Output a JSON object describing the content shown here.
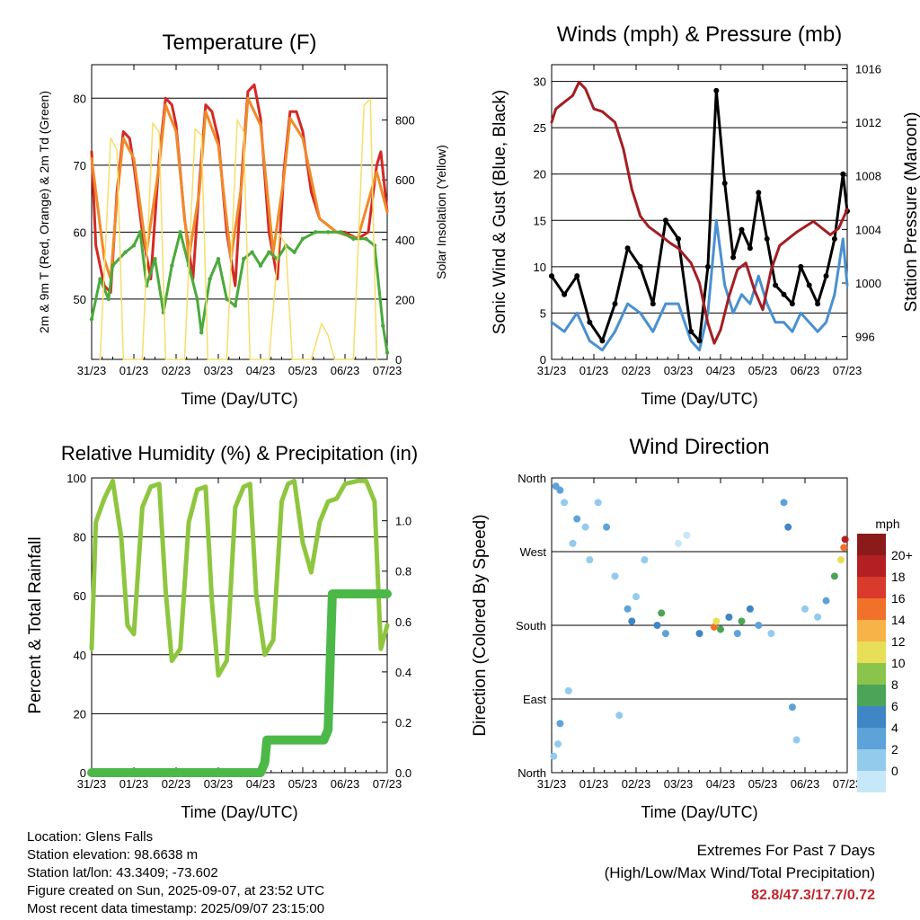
{
  "time_ticks": [
    "31/23",
    "01/23",
    "02/23",
    "03/23",
    "04/23",
    "05/23",
    "06/23",
    "07/23"
  ],
  "charts": {
    "temperature": {
      "title": "Temperature (F)",
      "xlabel": "Time (Day/UTC)",
      "ylabel_left": "2m & 9m T (Red, Orange) & 2m Td (Green)",
      "ylabel_right": "Solar Insolation (Yellow)",
      "left_ticks": [
        "50",
        "60",
        "70",
        "80"
      ],
      "right_ticks": [
        "0",
        "200",
        "400",
        "600",
        "800"
      ]
    },
    "winds": {
      "title": "Winds (mph) & Pressure (mb)",
      "xlabel": "Time (Day/UTC)",
      "ylabel_left": "Sonic Wind & Gust (Blue, Black)",
      "ylabel_right": "Station Pressure (Maroon)",
      "left_ticks": [
        "0",
        "5",
        "10",
        "15",
        "20",
        "25",
        "30"
      ],
      "right_ticks": [
        "996",
        "1000",
        "1004",
        "1008",
        "1012",
        "1016"
      ]
    },
    "humidity": {
      "title": "Relative Humidity (%) & Precipitation (in)",
      "xlabel": "Time (Day/UTC)",
      "ylabel_left": "Percent & Total Rainfall",
      "left_ticks": [
        "0",
        "20",
        "40",
        "60",
        "80",
        "100"
      ],
      "right_ticks": [
        "0.0",
        "0.2",
        "0.4",
        "0.6",
        "0.8",
        "1.0"
      ]
    },
    "direction": {
      "title": "Wind Direction",
      "xlabel": "Time (Day/UTC)",
      "ylabel_left": "Direction (Colored By Speed)",
      "left_ticks": [
        "North",
        "East",
        "South",
        "West",
        "North"
      ],
      "legend_title": "mph",
      "legend_labels": [
        "0",
        "2",
        "4",
        "6",
        "8",
        "10",
        "12",
        "14",
        "16",
        "18",
        "20+"
      ],
      "legend_colors": [
        "#c7e8f8",
        "#93cbed",
        "#5da2d8",
        "#3f86c4",
        "#4ba457",
        "#8ac44d",
        "#e8df58",
        "#f8b348",
        "#f1712b",
        "#d93a2b",
        "#b31f23",
        "#8b1a1a"
      ]
    }
  },
  "chart_data": [
    {
      "type": "line",
      "title": "Temperature (F)",
      "xlabel": "Time (Day/UTC)",
      "ylabel": "2m & 9m T (Red, Orange) & 2m Td (Green)",
      "y2label": "Solar Insolation (Yellow)",
      "x_unit": "days since 31/23",
      "xlim": [
        0,
        7
      ],
      "ylim": [
        41,
        85
      ],
      "y2lim": [
        0,
        985
      ],
      "series": [
        {
          "name": "2m T",
          "color": "#d42a24",
          "x": [
            0,
            0.1,
            0.3,
            0.45,
            0.6,
            0.75,
            0.9,
            1.0,
            1.2,
            1.4,
            1.6,
            1.75,
            1.9,
            2.0,
            2.2,
            2.4,
            2.55,
            2.7,
            2.85,
            3.0,
            3.2,
            3.4,
            3.55,
            3.7,
            3.85,
            4.0,
            4.2,
            4.4,
            4.55,
            4.7,
            4.85,
            5.0,
            5.2,
            5.4,
            5.6,
            5.8,
            6.0,
            6.3,
            6.55,
            6.75,
            6.85,
            7.0
          ],
          "y": [
            72,
            58,
            52,
            51,
            66,
            75,
            74,
            70,
            60,
            53,
            71,
            80,
            79,
            76,
            62,
            53,
            67,
            79,
            78,
            74,
            60,
            52,
            68,
            81,
            82,
            77,
            60,
            53,
            69,
            78,
            78,
            75,
            66,
            62,
            61,
            60,
            60,
            59,
            60,
            70,
            72,
            63
          ]
        },
        {
          "name": "9m T",
          "color": "#f08a2a",
          "x": [
            0,
            0.3,
            0.45,
            0.6,
            0.75,
            1.0,
            1.3,
            1.6,
            1.75,
            2.0,
            2.3,
            2.55,
            2.7,
            3.0,
            3.3,
            3.55,
            3.7,
            4.0,
            4.3,
            4.55,
            4.7,
            5.0,
            5.4,
            5.8,
            6.3,
            6.75,
            7.0
          ],
          "y": [
            71,
            56,
            53,
            65,
            74,
            71,
            57,
            70,
            79,
            75,
            56,
            66,
            78,
            73,
            56,
            67,
            80,
            76,
            57,
            68,
            77,
            74,
            62,
            60,
            59,
            69,
            63
          ]
        },
        {
          "name": "2m Td",
          "color": "#4aaa3b",
          "x": [
            0,
            0.2,
            0.4,
            0.5,
            0.8,
            1.0,
            1.15,
            1.3,
            1.5,
            1.7,
            1.9,
            2.1,
            2.3,
            2.5,
            2.6,
            2.8,
            3.0,
            3.2,
            3.4,
            3.6,
            3.8,
            4.0,
            4.2,
            4.4,
            4.6,
            4.8,
            5.0,
            5.3,
            5.6,
            5.9,
            6.2,
            6.5,
            6.7,
            6.9,
            7.0
          ],
          "y": [
            47,
            53,
            50,
            55,
            57,
            58,
            60,
            52,
            56,
            48,
            55,
            60,
            55,
            50,
            45,
            53,
            56,
            50,
            49,
            56,
            57,
            55,
            57,
            56,
            58,
            57,
            59,
            60,
            60,
            60,
            59,
            59,
            58,
            46,
            42
          ]
        },
        {
          "name": "Solar Insolation",
          "color": "#f7de6a",
          "axis": "right",
          "x": [
            0.2,
            0.45,
            0.6,
            0.75,
            1.2,
            1.45,
            1.6,
            1.75,
            2.2,
            2.45,
            2.6,
            2.75,
            3.2,
            3.45,
            3.6,
            3.75,
            4.2,
            4.45,
            4.6,
            4.75,
            5.2,
            5.45,
            5.6,
            5.75,
            6.2,
            6.45,
            6.6,
            6.75
          ],
          "y": [
            0,
            740,
            700,
            0,
            0,
            790,
            760,
            0,
            0,
            770,
            750,
            0,
            0,
            800,
            760,
            0,
            0,
            420,
            380,
            0,
            0,
            120,
            80,
            0,
            0,
            850,
            870,
            0
          ]
        }
      ]
    },
    {
      "type": "line",
      "title": "Winds (mph) & Pressure (mb)",
      "xlabel": "Time (Day/UTC)",
      "ylabel": "Sonic Wind & Gust (Blue, Black)",
      "y2label": "Station Pressure (Maroon)",
      "x_unit": "days since 31/23",
      "xlim": [
        0,
        7
      ],
      "ylim": [
        0,
        31.8
      ],
      "y2lim": [
        994.3,
        1016.3
      ],
      "series": [
        {
          "name": "Wind",
          "color": "#4a90d0",
          "x": [
            0,
            0.3,
            0.6,
            0.9,
            1.2,
            1.5,
            1.8,
            2.1,
            2.4,
            2.7,
            3.0,
            3.3,
            3.5,
            3.7,
            3.9,
            4.1,
            4.3,
            4.5,
            4.7,
            4.9,
            5.1,
            5.3,
            5.5,
            5.7,
            5.9,
            6.1,
            6.3,
            6.5,
            6.7,
            6.9,
            7.0
          ],
          "y": [
            4,
            3,
            5,
            2,
            1,
            3,
            6,
            5,
            3,
            6,
            6,
            2,
            1,
            5,
            15,
            8,
            5,
            7,
            6,
            9,
            6,
            4,
            4,
            3,
            5,
            4,
            3,
            4,
            7,
            13,
            8
          ]
        },
        {
          "name": "Gust",
          "color": "#000000",
          "x": [
            0,
            0.3,
            0.6,
            0.9,
            1.2,
            1.5,
            1.8,
            2.1,
            2.4,
            2.7,
            3.0,
            3.3,
            3.5,
            3.7,
            3.9,
            4.1,
            4.3,
            4.5,
            4.7,
            4.9,
            5.1,
            5.3,
            5.5,
            5.7,
            5.9,
            6.1,
            6.3,
            6.5,
            6.7,
            6.9,
            7.0
          ],
          "y": [
            9,
            7,
            9,
            4,
            2,
            6,
            12,
            10,
            6,
            15,
            13,
            3,
            2,
            10,
            29,
            19,
            11,
            14,
            12,
            18,
            13,
            8,
            7,
            6,
            10,
            8,
            6,
            9,
            13,
            20,
            16
          ]
        },
        {
          "name": "Station Pressure",
          "color": "#a31e23",
          "axis": "right",
          "x": [
            0,
            0.1,
            0.3,
            0.5,
            0.65,
            0.8,
            1.0,
            1.2,
            1.5,
            1.7,
            1.9,
            2.1,
            2.3,
            2.6,
            2.8,
            3.0,
            3.3,
            3.5,
            3.7,
            3.85,
            4.0,
            4.2,
            4.4,
            4.6,
            4.8,
            5.0,
            5.2,
            5.4,
            5.6,
            5.8,
            6.0,
            6.2,
            6.4,
            6.6,
            6.8,
            7.0
          ],
          "y": [
            1012,
            1013,
            1013.5,
            1014,
            1015,
            1014.5,
            1013,
            1012.8,
            1012,
            1010,
            1007,
            1005,
            1004.2,
            1003.5,
            1003,
            1002.6,
            1001.5,
            1000,
            997,
            995.5,
            996.5,
            999,
            1001,
            1001.5,
            999.5,
            998,
            1001,
            1002.8,
            1003.3,
            1003.8,
            1004.2,
            1004.6,
            1004.1,
            1003.6,
            1004.1,
            1005.5
          ]
        }
      ]
    },
    {
      "type": "line",
      "title": "Relative Humidity (%) & Precipitation (in)",
      "xlabel": "Time (Day/UTC)",
      "ylabel": "Percent & Total Rainfall",
      "x_unit": "days since 31/23",
      "xlim": [
        0,
        7
      ],
      "ylim": [
        0,
        100
      ],
      "y2lim": [
        0,
        1.17
      ],
      "series": [
        {
          "name": "Relative Humidity",
          "color": "#8ec63f",
          "x": [
            0,
            0.1,
            0.3,
            0.5,
            0.7,
            0.85,
            1.0,
            1.2,
            1.4,
            1.6,
            1.75,
            1.9,
            2.1,
            2.3,
            2.5,
            2.7,
            2.85,
            3.0,
            3.2,
            3.4,
            3.6,
            3.75,
            3.9,
            4.1,
            4.3,
            4.5,
            4.65,
            4.8,
            5.0,
            5.2,
            5.4,
            5.6,
            5.8,
            6.0,
            6.3,
            6.5,
            6.7,
            6.85,
            7.0
          ],
          "y": [
            42,
            85,
            93,
            99,
            80,
            50,
            47,
            90,
            97,
            98,
            62,
            38,
            42,
            85,
            96,
            97,
            58,
            33,
            38,
            90,
            97,
            98,
            60,
            40,
            45,
            92,
            98,
            99,
            78,
            68,
            85,
            92,
            93,
            98,
            99,
            99,
            92,
            42,
            50
          ]
        },
        {
          "name": "Total Precipitation",
          "color": "#4cb848",
          "axis": "right",
          "x": [
            0,
            1.0,
            2.0,
            3.0,
            4.0,
            4.1,
            4.15,
            4.5,
            5.0,
            5.5,
            5.6,
            5.65,
            5.7,
            6.0,
            6.5,
            7.0
          ],
          "y": [
            0.0,
            0.0,
            0.0,
            0.0,
            0.0,
            0.04,
            0.13,
            0.13,
            0.13,
            0.13,
            0.17,
            0.45,
            0.71,
            0.71,
            0.71,
            0.71
          ]
        }
      ]
    },
    {
      "type": "scatter",
      "title": "Wind Direction",
      "xlabel": "Time (Day/UTC)",
      "ylabel": "Direction (Colored By Speed)",
      "x_unit": "days since 31/23",
      "xlim": [
        0,
        7
      ],
      "ylim": [
        0,
        360
      ],
      "y_ticks": [
        "North",
        "East",
        "South",
        "West",
        "North"
      ],
      "colorbar": {
        "title": "mph",
        "labels": [
          "0",
          "2",
          "4",
          "6",
          "8",
          "10",
          "12",
          "14",
          "16",
          "18",
          "20+"
        ]
      },
      "points": [
        {
          "x": 0.05,
          "y": 20,
          "mph": 2
        },
        {
          "x": 0.15,
          "y": 35,
          "mph": 3
        },
        {
          "x": 0.2,
          "y": 60,
          "mph": 4
        },
        {
          "x": 0.1,
          "y": 350,
          "mph": 4
        },
        {
          "x": 0.2,
          "y": 345,
          "mph": 5
        },
        {
          "x": 0.3,
          "y": 330,
          "mph": 3
        },
        {
          "x": 0.4,
          "y": 100,
          "mph": 2
        },
        {
          "x": 0.5,
          "y": 280,
          "mph": 3
        },
        {
          "x": 0.6,
          "y": 310,
          "mph": 4
        },
        {
          "x": 0.8,
          "y": 300,
          "mph": 3
        },
        {
          "x": 0.9,
          "y": 260,
          "mph": 2
        },
        {
          "x": 1.1,
          "y": 330,
          "mph": 3
        },
        {
          "x": 1.3,
          "y": 300,
          "mph": 4
        },
        {
          "x": 1.5,
          "y": 240,
          "mph": 2
        },
        {
          "x": 1.6,
          "y": 70,
          "mph": 2
        },
        {
          "x": 1.8,
          "y": 200,
          "mph": 5
        },
        {
          "x": 1.9,
          "y": 185,
          "mph": 7
        },
        {
          "x": 2.0,
          "y": 215,
          "mph": 3
        },
        {
          "x": 2.2,
          "y": 260,
          "mph": 2
        },
        {
          "x": 2.5,
          "y": 180,
          "mph": 6
        },
        {
          "x": 2.6,
          "y": 195,
          "mph": 8
        },
        {
          "x": 2.7,
          "y": 170,
          "mph": 5
        },
        {
          "x": 3.0,
          "y": 280,
          "mph": 1
        },
        {
          "x": 3.2,
          "y": 290,
          "mph": 1
        },
        {
          "x": 3.5,
          "y": 170,
          "mph": 6
        },
        {
          "x": 3.85,
          "y": 178,
          "mph": 16
        },
        {
          "x": 3.9,
          "y": 185,
          "mph": 13
        },
        {
          "x": 4.0,
          "y": 175,
          "mph": 9
        },
        {
          "x": 4.2,
          "y": 190,
          "mph": 6
        },
        {
          "x": 4.4,
          "y": 170,
          "mph": 5
        },
        {
          "x": 4.5,
          "y": 185,
          "mph": 8
        },
        {
          "x": 4.7,
          "y": 200,
          "mph": 7
        },
        {
          "x": 4.9,
          "y": 180,
          "mph": 4
        },
        {
          "x": 5.2,
          "y": 170,
          "mph": 3
        },
        {
          "x": 5.5,
          "y": 330,
          "mph": 4
        },
        {
          "x": 5.6,
          "y": 300,
          "mph": 7
        },
        {
          "x": 5.7,
          "y": 80,
          "mph": 4
        },
        {
          "x": 5.8,
          "y": 40,
          "mph": 3
        },
        {
          "x": 6.0,
          "y": 200,
          "mph": 2
        },
        {
          "x": 6.3,
          "y": 190,
          "mph": 3
        },
        {
          "x": 6.5,
          "y": 210,
          "mph": 4
        },
        {
          "x": 6.7,
          "y": 240,
          "mph": 8
        },
        {
          "x": 6.85,
          "y": 260,
          "mph": 12
        },
        {
          "x": 6.92,
          "y": 275,
          "mph": 16
        },
        {
          "x": 6.95,
          "y": 285,
          "mph": 20
        }
      ]
    }
  ],
  "footer": {
    "location": "Location: Glens Falls",
    "elevation": "Station elevation: 98.6638 m",
    "latlon": "Station lat/lon: 43.3409; -73.602",
    "created": "Figure created on Sun, 2025-09-07, at 23:52 UTC",
    "recent": "Most recent data timestamp: 2025/09/07 23:15:00"
  },
  "extremes": {
    "line1": "Extremes For Past 7 Days",
    "line2": "(High/Low/Max Wind/Total Precipitation)",
    "values": "82.8/47.3/17.7/0.72"
  }
}
